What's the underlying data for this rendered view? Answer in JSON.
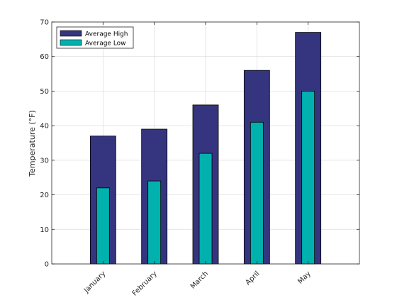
{
  "chart_data": {
    "type": "bar",
    "title": "",
    "xlabel": "",
    "ylabel": "Temperature (°F)",
    "categories": [
      "January",
      "February",
      "March",
      "April",
      "May"
    ],
    "series": [
      {
        "name": "Average High",
        "values": [
          37,
          39,
          46,
          56,
          67
        ],
        "color": "#35357f"
      },
      {
        "name": "Average Low",
        "values": [
          22,
          24,
          32,
          41,
          50
        ],
        "color": "#00b1ae"
      }
    ],
    "ylim": [
      0,
      70
    ],
    "yticks": [
      0,
      10,
      20,
      30,
      40,
      50,
      60,
      70
    ],
    "grid": true,
    "legend_position": "top-left",
    "overlaid_bars": true
  }
}
